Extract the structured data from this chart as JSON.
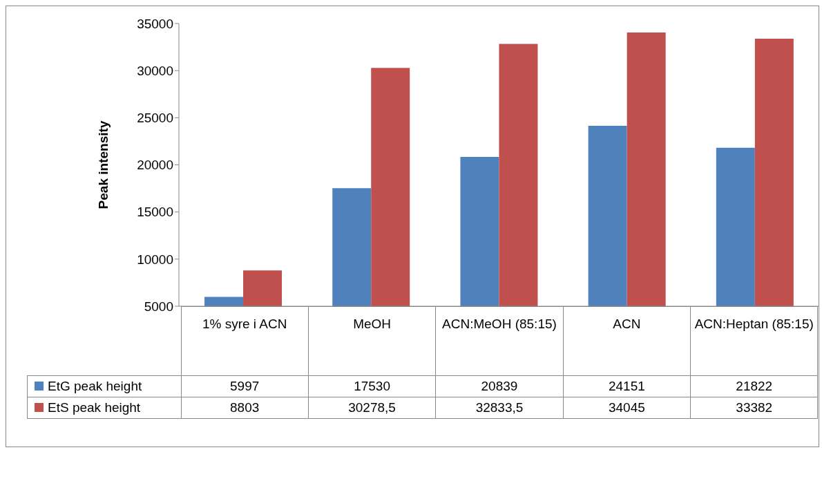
{
  "chart_data": {
    "type": "bar",
    "ylabel": "Peak intensity",
    "categories": [
      "1% syre i ACN",
      "MeOH",
      "ACN:MeOH (85:15)",
      "ACN",
      "ACN:Heptan (85:15)"
    ],
    "series": [
      {
        "name": "EtG peak height",
        "color": "#4f81bd",
        "values": [
          5997,
          17530,
          20839,
          24151,
          21822
        ],
        "value_labels": [
          "5997",
          "17530",
          "20839",
          "24151",
          "21822"
        ]
      },
      {
        "name": "EtS peak height",
        "color": "#c0504d",
        "values": [
          8803,
          30278.5,
          32833.5,
          34045,
          33382
        ],
        "value_labels": [
          "8803",
          "30278,5",
          "32833,5",
          "34045",
          "33382"
        ]
      }
    ],
    "ylim": [
      5000,
      35000
    ],
    "yticks": [
      5000,
      10000,
      15000,
      20000,
      25000,
      30000,
      35000
    ],
    "grid": false,
    "legend": "bottom"
  }
}
